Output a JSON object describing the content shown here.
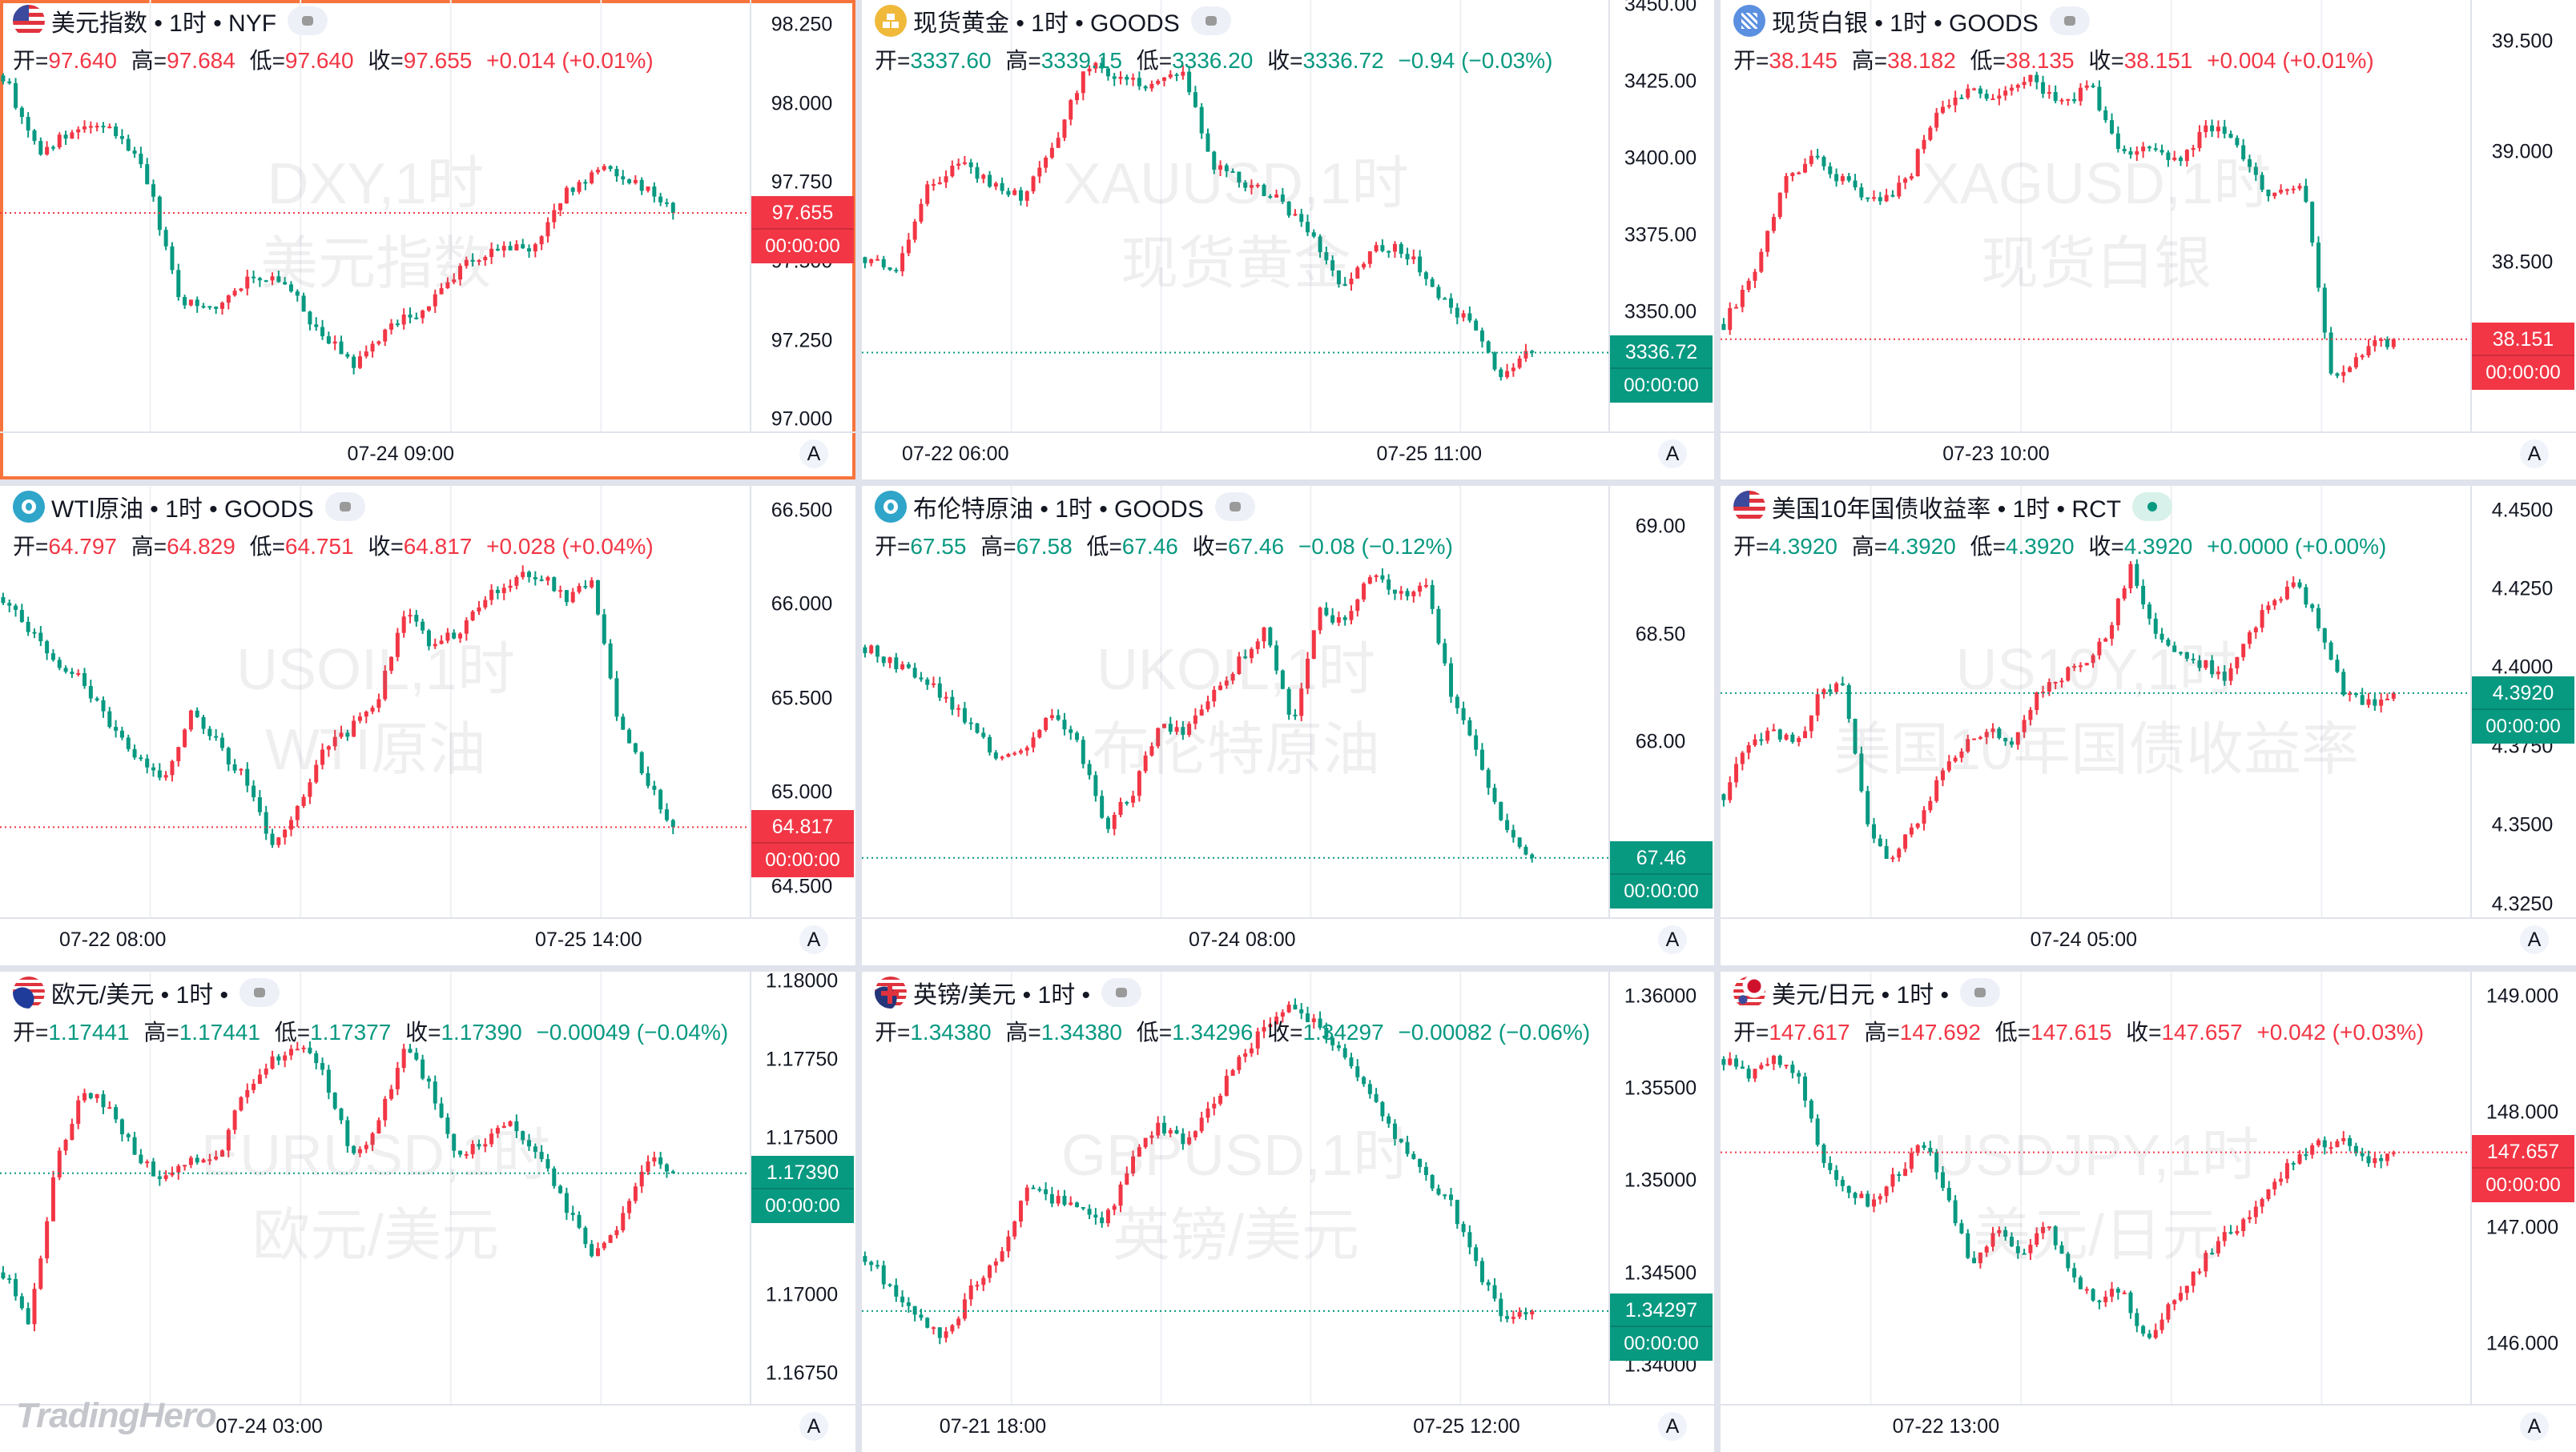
{
  "labels": {
    "open": "开=",
    "high": "高=",
    "low": "低=",
    "close": "收="
  },
  "colors": {
    "up": "#f23645",
    "down": "#089981",
    "selected_border": "#f7743c",
    "text": "#131722"
  },
  "logo_text": "TradingHero",
  "panels": [
    {
      "title": "美元指数 • 1时 • NYF",
      "flag": "us-flag-icon",
      "flag_class": "f-us",
      "badge": "status",
      "selected": true,
      "direction": "up",
      "ohlc": {
        "open": "97.640",
        "high": "97.684",
        "low": "97.640",
        "close": "97.655",
        "change": "+0.014 (+0.01%)"
      },
      "watermark": [
        "DXY,1时",
        "美元指数"
      ],
      "last_price": "97.655",
      "countdown": "00:00:00",
      "axis_mode": "A",
      "y_ticks": [
        "98.250",
        "98.000",
        "97.750",
        "97.500",
        "97.250",
        "97.000"
      ],
      "y_range": [
        96.958,
        98.329
      ],
      "time_labels": [
        {
          "text": "07-24 09:00",
          "slot": 64
        }
      ],
      "anchors": [
        98.09,
        97.85,
        97.91,
        97.93,
        97.8,
        97.38,
        97.35,
        97.46,
        97.43,
        97.27,
        97.17,
        97.3,
        97.35,
        97.49,
        97.54,
        97.54,
        97.72,
        97.8,
        97.75,
        97.655
      ]
    },
    {
      "title": "现货黄金 • 1时 • GOODS",
      "flag": "gold-icon",
      "flag_class": "f-gold",
      "badge": "status",
      "direction": "down",
      "ohlc": {
        "open": "3337.60",
        "high": "3339.15",
        "low": "3336.20",
        "close": "3336.72",
        "change": "−0.94 (−0.03%)"
      },
      "watermark": [
        "XAUUSD,1时",
        "现货黄金"
      ],
      "last_price": "3336.72",
      "countdown": "00:00:00",
      "axis_mode": "A",
      "y_ticks": [
        "3450.00",
        "3425.00",
        "3400.00",
        "3375.00",
        "3350.00"
      ],
      "y_range": [
        3310.5,
        3451.6
      ],
      "time_labels": [
        {
          "text": "07-22 06:00",
          "slot": 15
        },
        {
          "text": "07-25 11:00",
          "slot": 91
        }
      ],
      "anchors": [
        3367.8,
        3365,
        3392,
        3397.6,
        3392,
        3387,
        3406,
        3430,
        3427,
        3424,
        3427,
        3397.6,
        3392,
        3387,
        3376,
        3357,
        3370.5,
        3370,
        3357,
        3346,
        3330,
        3336.72
      ]
    },
    {
      "title": "现货白银 • 1时 • GOODS",
      "flag": "silver-icon",
      "flag_class": "f-silver",
      "badge": "status",
      "direction": "up",
      "ohlc": {
        "open": "38.145",
        "high": "38.182",
        "low": "38.135",
        "close": "38.151",
        "change": "+0.004 (+0.01%)"
      },
      "watermark": [
        "XAGUSD,1时",
        "现货白银"
      ],
      "last_price": "38.151",
      "countdown": "00:00:00",
      "axis_mode": "A",
      "y_ticks": [
        "39.500",
        "39.000",
        "38.500"
      ],
      "y_range": [
        37.726,
        39.688
      ],
      "time_labels": [
        {
          "text": "07-23 10:00",
          "slot": 44
        }
      ],
      "anchors": [
        38.22,
        38.45,
        38.86,
        38.97,
        38.86,
        38.78,
        38.86,
        39.2,
        39.27,
        39.24,
        39.35,
        39.2,
        39.31,
        39.01,
        39.01,
        38.97,
        39.12,
        39.0,
        38.78,
        38.86,
        37.96,
        38.1,
        38.151
      ]
    },
    {
      "title": "WTI原油 • 1时 • GOODS",
      "flag": "oil-icon",
      "flag_class": "f-oil",
      "badge": "status",
      "direction": "up",
      "ohlc": {
        "open": "64.797",
        "high": "64.829",
        "low": "64.751",
        "close": "64.817",
        "change": "+0.028 (+0.04%)"
      },
      "watermark": [
        "USOIL,1时",
        "WTI原油"
      ],
      "last_price": "64.817",
      "countdown": "00:00:00",
      "axis_mode": "A",
      "y_ticks": [
        "66.500",
        "66.000",
        "65.500",
        "65.000",
        "64.500"
      ],
      "y_range": [
        64.329,
        66.631
      ],
      "time_labels": [
        {
          "text": "07-22 08:00",
          "slot": 18
        },
        {
          "text": "07-25 14:00",
          "slot": 94
        }
      ],
      "anchors": [
        66.04,
        65.86,
        65.69,
        65.6,
        65.34,
        65.17,
        65.08,
        65.43,
        65.25,
        65.08,
        64.73,
        64.9,
        65.25,
        65.34,
        65.52,
        65.95,
        65.78,
        65.86,
        66.04,
        66.13,
        66.17,
        66.04,
        66.13,
        65.34,
        65.08,
        64.817
      ]
    },
    {
      "title": "布伦特原油 • 1时 • GOODS",
      "flag": "oil-icon",
      "flag_class": "f-oil",
      "badge": "status",
      "direction": "down",
      "ohlc": {
        "open": "67.55",
        "high": "67.58",
        "low": "67.46",
        "close": "67.46",
        "change": "−0.08 (−0.12%)"
      },
      "watermark": [
        "UKOIL,1时",
        "布伦特原油"
      ],
      "last_price": "67.46",
      "countdown": "00:00:00",
      "axis_mode": "A",
      "y_ticks": [
        "69.00",
        "68.50",
        "68.00"
      ],
      "y_range": [
        67.176,
        69.191
      ],
      "time_labels": [
        {
          "text": "07-24 08:00",
          "slot": 61
        }
      ],
      "anchors": [
        68.44,
        68.37,
        68.29,
        68.21,
        68.06,
        67.91,
        67.98,
        68.14,
        67.98,
        67.6,
        67.76,
        68.06,
        68.06,
        68.21,
        68.37,
        68.52,
        68.06,
        68.6,
        68.56,
        68.79,
        68.67,
        68.75,
        68.21,
        67.91,
        67.6,
        67.46
      ]
    },
    {
      "title": "美国10年国债收益率 • 1时 • RCT",
      "flag": "us-flag-icon",
      "flag_class": "f-us",
      "badge": "live",
      "direction": "down",
      "ohlc": {
        "open": "4.3920",
        "high": "4.3920",
        "low": "4.3920",
        "close": "4.3920",
        "change": "+0.0000 (+0.00%)"
      },
      "watermark": [
        "US10Y,1时",
        "美国10年国债收益率"
      ],
      "last_price": "4.3920",
      "countdown": "00:00:00",
      "axis_mode": "A",
      "y_ticks": [
        "4.4500",
        "4.4250",
        "4.4000",
        "4.3750",
        "4.3500",
        "4.3250"
      ],
      "y_range": [
        4.3203,
        4.4578
      ],
      "time_labels": [
        {
          "text": "07-24 05:00",
          "slot": 58
        }
      ],
      "anchors": [
        4.3599,
        4.3755,
        4.3807,
        4.3755,
        4.3911,
        4.3963,
        4.3495,
        4.3391,
        4.3495,
        4.3651,
        4.3755,
        4.3807,
        4.3755,
        4.3911,
        4.3963,
        4.4015,
        4.4094,
        4.4328,
        4.412,
        4.404,
        4.4015,
        4.3963,
        4.412,
        4.422,
        4.427,
        4.412,
        4.3911,
        4.3885,
        4.392
      ]
    },
    {
      "title": "欧元/美元 • 1时 •",
      "flag": "eu-us-flag-icon",
      "flag_class": "f-eu",
      "badge": "status",
      "direction": "down",
      "ohlc": {
        "open": "1.17441",
        "high": "1.17441",
        "low": "1.17377",
        "close": "1.17390",
        "change": "−0.00049 (−0.04%)"
      },
      "watermark": [
        "EURUSD,1时",
        "欧元/美元"
      ],
      "last_price": "1.17390",
      "countdown": "00:00:00",
      "axis_mode": "A",
      "y_ticks": [
        "1.18000",
        "1.17750",
        "1.17500",
        "1.17000",
        "1.16750"
      ],
      "y_range": [
        1.16651,
        1.18031
      ],
      "time_labels": [
        {
          "text": "07-24 03:00",
          "slot": 43
        }
      ],
      "anchors": [
        1.17074,
        1.16917,
        1.1744,
        1.17649,
        1.17597,
        1.1744,
        1.17362,
        1.1744,
        1.1744,
        1.17649,
        1.17754,
        1.17806,
        1.17701,
        1.1744,
        1.17545,
        1.17806,
        1.17649,
        1.1744,
        1.17492,
        1.17545,
        1.1744,
        1.17283,
        1.17126,
        1.1723,
        1.1744,
        1.1739
      ]
    },
    {
      "title": "英镑/美元 • 1时 •",
      "flag": "gb-us-flag-icon",
      "flag_class": "f-gb",
      "badge": "status",
      "direction": "down",
      "ohlc": {
        "open": "1.34380",
        "high": "1.34380",
        "low": "1.34296",
        "close": "1.34297",
        "change": "−0.00082 (−0.06%)"
      },
      "watermark": [
        "GBPUSD,1时",
        "英镑/美元"
      ],
      "last_price": "1.34297",
      "countdown": "00:00:00",
      "axis_mode": "A",
      "y_ticks": [
        "1.36000",
        "1.35500",
        "1.35000",
        "1.34500",
        "1.34000"
      ],
      "y_range": [
        1.33787,
        1.36133
      ],
      "time_labels": [
        {
          "text": "07-21 18:00",
          "slot": 21
        },
        {
          "text": "07-25 12:00",
          "slot": 97
        }
      ],
      "anchors": [
        1.34595,
        1.34417,
        1.3424,
        1.34151,
        1.34417,
        1.34595,
        1.34951,
        1.34906,
        1.34862,
        1.34773,
        1.35129,
        1.35307,
        1.35218,
        1.35395,
        1.35662,
        1.3584,
        1.35973,
        1.3584,
        1.35662,
        1.35484,
        1.35218,
        1.3504,
        1.34862,
        1.34507,
        1.3424,
        1.34297
      ]
    },
    {
      "title": "美元/日元 • 1时 •",
      "flag": "us-jp-flag-icon",
      "flag_class": "f-jp",
      "badge": "status",
      "direction": "up",
      "ohlc": {
        "open": "147.617",
        "high": "147.692",
        "low": "147.615",
        "close": "147.657",
        "change": "+0.042 (+0.03%)"
      },
      "watermark": [
        "USDJPY,1时",
        "美元/日元"
      ],
      "last_price": "147.657",
      "countdown": "00:00:00",
      "axis_mode": "A",
      "y_ticks": [
        "149.000",
        "148.000",
        "147.000",
        "146.000"
      ],
      "y_range": [
        145.476,
        149.212
      ],
      "time_labels": [
        {
          "text": "07-22 13:00",
          "slot": 36
        }
      ],
      "anchors": [
        148.462,
        148.32,
        148.462,
        148.32,
        147.613,
        147.33,
        147.19,
        147.47,
        147.75,
        147.33,
        146.62,
        147.05,
        146.76,
        147.05,
        146.62,
        146.34,
        146.48,
        146.06,
        146.34,
        146.62,
        146.91,
        147.05,
        147.33,
        147.61,
        147.75,
        147.75,
        147.61,
        147.657
      ]
    }
  ]
}
